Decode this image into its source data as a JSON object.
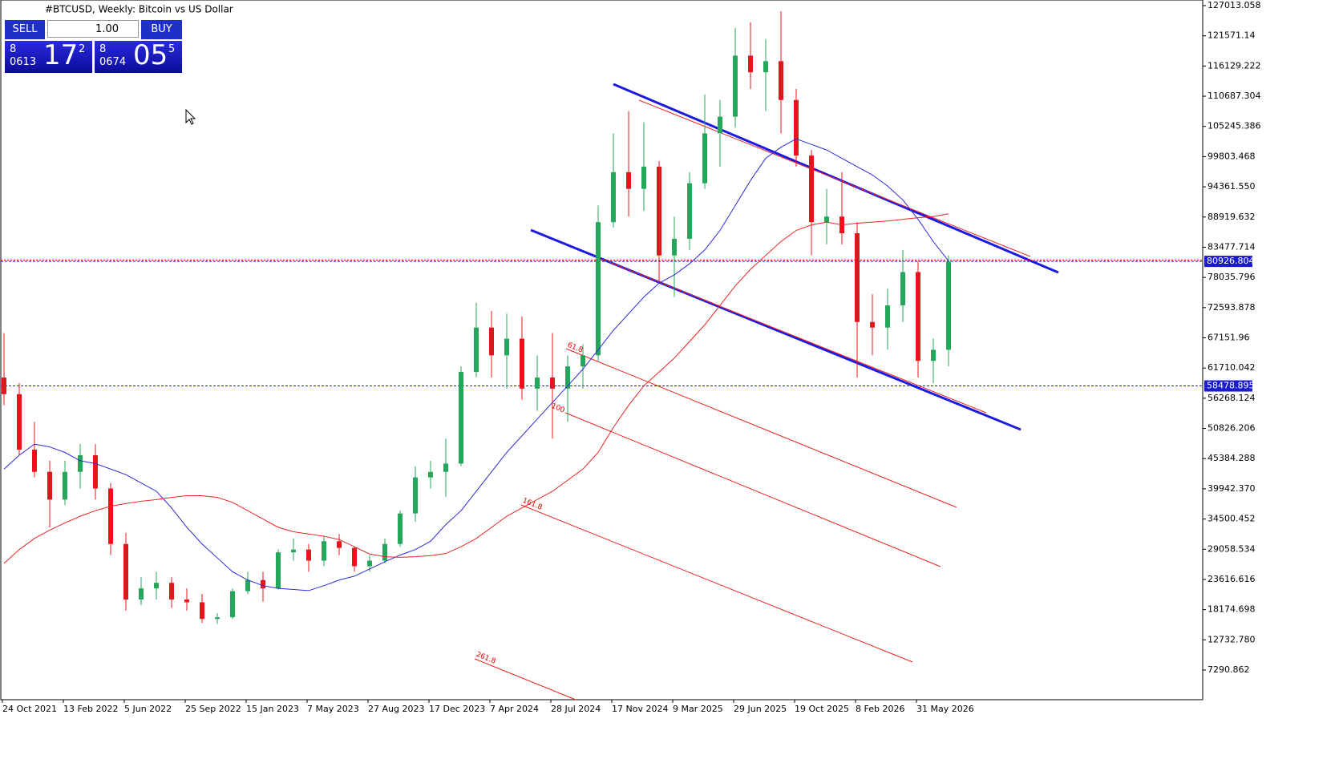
{
  "chart_data": {
    "type": "candlestick",
    "title": "#BTCUSD, Weekly:  Bitcoin vs US Dollar",
    "up_color": "#26a65b",
    "down_color": "#e8141c",
    "candles": {
      "open": [
        60000,
        57000,
        47000,
        43000,
        38000,
        43000,
        46000,
        40000,
        30000,
        20000,
        22000,
        23000,
        20000,
        19500,
        16500,
        16800,
        21500,
        23500,
        22000,
        28500,
        29000,
        27000,
        30500,
        29300,
        26000,
        27000,
        30000,
        35500,
        42000,
        43000,
        44500,
        61000,
        69000,
        64000,
        67000,
        58000,
        60000,
        58000,
        62000,
        64000,
        88000,
        97000,
        94000,
        98000,
        82000,
        85000,
        95000,
        104000,
        107000,
        118000,
        115000,
        117000,
        110000,
        100000,
        88000,
        89000,
        86000,
        70000,
        69000,
        73000,
        79000,
        63000,
        65000
      ],
      "high": [
        68000,
        59000,
        52000,
        45000,
        45000,
        48000,
        48000,
        41000,
        32000,
        24000,
        25000,
        24000,
        22000,
        21000,
        17500,
        22000,
        25000,
        25000,
        29000,
        31000,
        30000,
        31500,
        31800,
        29500,
        28000,
        31000,
        36000,
        44000,
        45000,
        49000,
        62000,
        73500,
        72000,
        71500,
        71000,
        64000,
        68000,
        64000,
        66000,
        91000,
        104000,
        108000,
        106000,
        99000,
        89000,
        97000,
        111000,
        110000,
        123000,
        124000,
        121000,
        126000,
        112000,
        101000,
        94000,
        97000,
        88000,
        75000,
        76000,
        83000,
        81000,
        67000,
        82000
      ],
      "low": [
        55000,
        46000,
        42000,
        33000,
        37000,
        40000,
        38000,
        28000,
        18000,
        19000,
        20000,
        18500,
        18000,
        15800,
        15600,
        16500,
        21000,
        19600,
        21800,
        27000,
        25000,
        26000,
        28000,
        25000,
        25000,
        26500,
        29500,
        34000,
        40000,
        38500,
        44000,
        60000,
        60000,
        58000,
        56000,
        54000,
        49000,
        52000,
        58000,
        63000,
        87000,
        89000,
        90000,
        77000,
        74500,
        83000,
        94000,
        98000,
        105000,
        112000,
        108000,
        104000,
        98000,
        82000,
        84000,
        84000,
        60000,
        64000,
        65000,
        70000,
        60000,
        59000,
        62000
      ],
      "close": [
        57000,
        47000,
        43000,
        38000,
        43000,
        46000,
        40000,
        30000,
        20000,
        22000,
        23000,
        20000,
        19500,
        16500,
        16800,
        21500,
        23500,
        22000,
        28500,
        29000,
        27000,
        30500,
        29300,
        26000,
        27000,
        30000,
        35500,
        42000,
        43000,
        44500,
        61000,
        69000,
        64000,
        67000,
        58000,
        60000,
        58000,
        62000,
        64000,
        88000,
        97000,
        94000,
        98000,
        82000,
        85000,
        95000,
        104000,
        107000,
        118000,
        115000,
        117000,
        110000,
        100000,
        88000,
        89000,
        86000,
        70000,
        69000,
        73000,
        79000,
        63000,
        65000,
        80900
      ]
    },
    "moving_averages": [
      {
        "color": "#2a2ad8",
        "values": [
          43500,
          46000,
          48000,
          47500,
          46500,
          45000,
          44500,
          43500,
          42500,
          41000,
          39500,
          36500,
          33000,
          30000,
          27500,
          25000,
          23500,
          22500,
          22000,
          21800,
          21600,
          22500,
          23500,
          24200,
          25500,
          26800,
          28000,
          29000,
          30500,
          33500,
          36000,
          39500,
          43000,
          46500,
          49500,
          52500,
          55500,
          58500,
          61500,
          65000,
          68500,
          71500,
          74500,
          77000,
          78500,
          80500,
          83000,
          86500,
          91000,
          95500,
          99500,
          101500,
          103000,
          102000,
          101000,
          99500,
          98000,
          96500,
          94500,
          92000,
          88500,
          84500,
          81000
        ]
      },
      {
        "color": "#ee2222",
        "values": [
          26500,
          29000,
          31000,
          32500,
          33800,
          35000,
          36000,
          36800,
          37300,
          37700,
          38000,
          38400,
          38700,
          38700,
          38400,
          37500,
          36000,
          34500,
          33000,
          32200,
          31800,
          31400,
          30800,
          29500,
          28200,
          27700,
          27600,
          27700,
          27900,
          28300,
          29500,
          31000,
          33000,
          35000,
          36500,
          38000,
          39500,
          41500,
          43500,
          46500,
          51000,
          55000,
          58500,
          61000,
          63500,
          66500,
          69500,
          73000,
          76500,
          79500,
          82000,
          84500,
          86500,
          87500,
          88000,
          87500,
          87800,
          88000,
          88200,
          88500,
          88800,
          89000,
          89500
        ]
      }
    ],
    "ylim": [
      1947,
      128024
    ],
    "yticks": [
      127013.058,
      121571.14,
      116129.222,
      110687.304,
      105245.386,
      99803.468,
      {
        "value": 94361.55,
        "label": "94361.550"
      },
      88919.632,
      83477.714,
      78035.796,
      72593.878,
      67151.96,
      61710.042,
      56268.124,
      50826.206,
      45384.288,
      {
        "value": 39942.37,
        "label": "39942.370"
      },
      34500.452,
      29058.534,
      23616.616,
      18174.698,
      {
        "value": 12732.78,
        "label": "12732.780"
      },
      7290.862
    ],
    "yticks_fix": null,
    "x_tick_labels": [
      "24 Oct 2021",
      "13 Feb 2022",
      "5 Jun 2022",
      "25 Sep 2022",
      "15 Jan 2023",
      "7 May 2023",
      "27 Aug 2023",
      "17 Dec 2023",
      "7 Apr 2024",
      "28 Jul 2024",
      "17 Nov 2024",
      "9 Mar 2025",
      "29 Jun 2025",
      "19 Oct 2025",
      "8 Feb 2026",
      "31 May 2026"
    ],
    "price_lines": [
      {
        "value": 80926.804,
        "color": "#1a1ad0"
      },
      {
        "value": 58478.895,
        "color": "#1a1ad0"
      }
    ],
    "fib_labels": [
      "61.8",
      "100",
      "161.8",
      "261.8"
    ]
  },
  "trade_panel": {
    "sell": "SELL",
    "volume": "1.00",
    "buy": "BUY",
    "bid": {
      "prefix": "8",
      "small": "0613",
      "big": "17",
      "sup": "2"
    },
    "ask": {
      "prefix": "8",
      "small": "0674",
      "big": "05",
      "sup": "5"
    }
  }
}
